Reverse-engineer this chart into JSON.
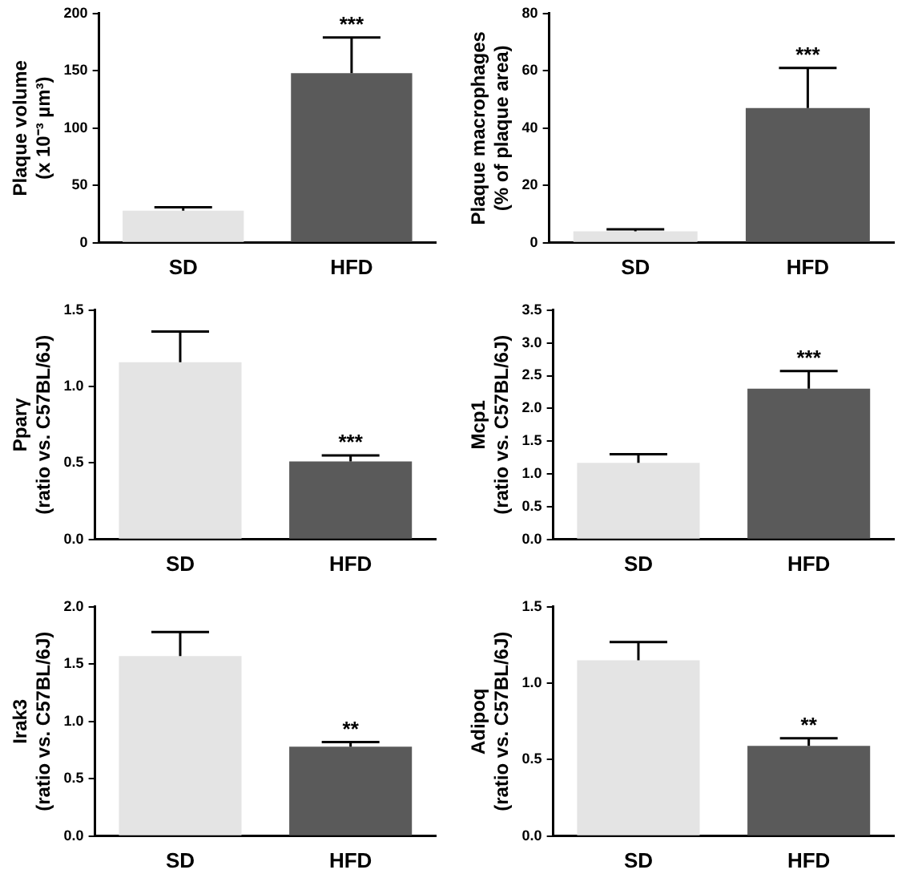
{
  "chart_data": [
    {
      "type": "bar",
      "ylabel": "Plaque volume\n(x 10⁻³ µm³)",
      "categories": [
        "SD",
        "HFD"
      ],
      "values": [
        28,
        148
      ],
      "errors": [
        3,
        31
      ],
      "colors": [
        "#e4e4e4",
        "#5a5a5a"
      ],
      "ylim": [
        0,
        200
      ],
      "yticks": [
        0,
        50,
        100,
        150,
        200
      ],
      "grid": false,
      "annotations": [
        {
          "text": "***",
          "x": "HFD",
          "y": 179
        }
      ]
    },
    {
      "type": "bar",
      "ylabel": "Plaque macrophages\n(% of plaque area)",
      "categories": [
        "SD",
        "HFD"
      ],
      "values": [
        4,
        47
      ],
      "errors": [
        0.7,
        14
      ],
      "colors": [
        "#e4e4e4",
        "#5a5a5a"
      ],
      "ylim": [
        0,
        80
      ],
      "yticks": [
        0,
        20,
        40,
        60,
        80
      ],
      "grid": false,
      "annotations": [
        {
          "text": "***",
          "x": "HFD",
          "y": 61
        }
      ]
    },
    {
      "type": "bar",
      "ylabel": "Pparγ\n(ratio vs. C57BL/6J)",
      "categories": [
        "SD",
        "HFD"
      ],
      "values": [
        1.16,
        0.51
      ],
      "errors": [
        0.2,
        0.04
      ],
      "colors": [
        "#e4e4e4",
        "#5a5a5a"
      ],
      "ylim": [
        0,
        1.5
      ],
      "yticks": [
        {
          "value": 0,
          "label": "0.0"
        },
        0.5,
        {
          "value": 1,
          "label": "1.0"
        },
        1.5
      ],
      "grid": false,
      "annotations": [
        {
          "text": "***",
          "x": "HFD",
          "y": 0.55
        }
      ]
    },
    {
      "type": "bar",
      "ylabel": "Mcp1\n(ratio vs. C57BL/6J)",
      "categories": [
        "SD",
        "HFD"
      ],
      "values": [
        1.17,
        2.3
      ],
      "errors": [
        0.13,
        0.27
      ],
      "colors": [
        "#e4e4e4",
        "#5a5a5a"
      ],
      "ylim": [
        0,
        3.5
      ],
      "yticks": [
        {
          "value": 0,
          "label": "0.0"
        },
        0.5,
        {
          "value": 1,
          "label": "1.0"
        },
        1.5,
        {
          "value": 2,
          "label": "2.0"
        },
        2.5,
        {
          "value": 3,
          "label": "3.0"
        },
        3.5
      ],
      "grid": false,
      "annotations": [
        {
          "text": "***",
          "x": "HFD",
          "y": 2.57
        }
      ]
    },
    {
      "type": "bar",
      "ylabel": "Irak3\n(ratio vs. C57BL/6J)",
      "categories": [
        "SD",
        "HFD"
      ],
      "values": [
        1.57,
        0.78
      ],
      "errors": [
        0.21,
        0.04
      ],
      "colors": [
        "#e4e4e4",
        "#5a5a5a"
      ],
      "ylim": [
        0,
        2
      ],
      "yticks": [
        {
          "value": 0,
          "label": "0.0"
        },
        0.5,
        {
          "value": 1,
          "label": "1.0"
        },
        1.5,
        {
          "value": 2,
          "label": "2.0"
        }
      ],
      "grid": false,
      "annotations": [
        {
          "text": "**",
          "x": "HFD",
          "y": 0.82
        }
      ]
    },
    {
      "type": "bar",
      "ylabel": "Adipoq\n(ratio vs. C57BL/6J)",
      "categories": [
        "SD",
        "HFD"
      ],
      "values": [
        1.15,
        0.59
      ],
      "errors": [
        0.12,
        0.05
      ],
      "colors": [
        "#e4e4e4",
        "#5a5a5a"
      ],
      "ylim": [
        0,
        1.5
      ],
      "yticks": [
        {
          "value": 0,
          "label": "0.0"
        },
        0.5,
        {
          "value": 1,
          "label": "1.0"
        },
        1.5
      ],
      "grid": false,
      "annotations": [
        {
          "text": "**",
          "x": "HFD",
          "y": 0.64
        }
      ]
    }
  ]
}
